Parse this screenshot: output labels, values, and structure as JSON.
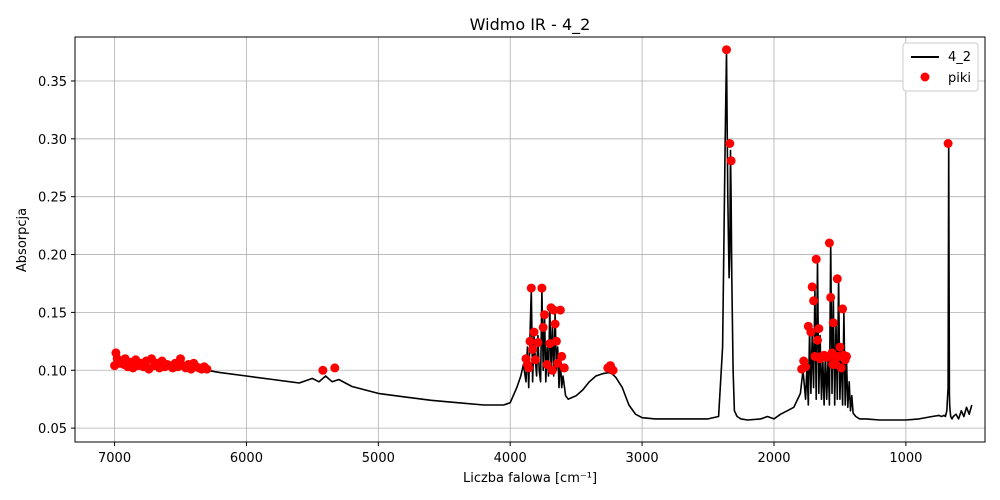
{
  "chart_data": {
    "type": "line",
    "title": "Widmo IR - 4_2",
    "xlabel": "Liczba falowa [cm⁻¹]",
    "ylabel": "Absorpcja",
    "x_reversed": true,
    "xlim": [
      7300,
      400
    ],
    "ylim": [
      0.038,
      0.388
    ],
    "xticks": [
      7000,
      6000,
      5000,
      4000,
      3000,
      2000,
      1000
    ],
    "yticks": [
      0.05,
      0.1,
      0.15,
      0.2,
      0.25,
      0.3,
      0.35
    ],
    "xtick_labels": [
      "7000",
      "6000",
      "5000",
      "4000",
      "3000",
      "2000",
      "1000"
    ],
    "ytick_labels": [
      "0.05",
      "0.10",
      "0.15",
      "0.20",
      "0.25",
      "0.30",
      "0.35"
    ],
    "grid": true,
    "legend_position": "top-right",
    "series": [
      {
        "name": "4_2",
        "kind": "line",
        "color": "#000000",
        "x": [
          7000,
          6800,
          6600,
          6400,
          6300,
          6200,
          6000,
          5800,
          5600,
          5500,
          5450,
          5400,
          5350,
          5300,
          5250,
          5200,
          5000,
          4800,
          4600,
          4400,
          4200,
          4050,
          4000,
          3950,
          3920,
          3900,
          3880,
          3870,
          3860,
          3850,
          3840,
          3830,
          3820,
          3810,
          3800,
          3790,
          3780,
          3770,
          3760,
          3750,
          3740,
          3730,
          3720,
          3710,
          3700,
          3690,
          3680,
          3670,
          3660,
          3650,
          3640,
          3630,
          3620,
          3610,
          3600,
          3580,
          3560,
          3540,
          3500,
          3450,
          3400,
          3350,
          3300,
          3250,
          3230,
          3200,
          3150,
          3100,
          3050,
          3000,
          2900,
          2700,
          2500,
          2420,
          2390,
          2370,
          2360,
          2350,
          2345,
          2340,
          2335,
          2330,
          2325,
          2320,
          2310,
          2300,
          2280,
          2250,
          2200,
          2100,
          2050,
          2000,
          1950,
          1900,
          1850,
          1800,
          1780,
          1760,
          1750,
          1740,
          1730,
          1720,
          1710,
          1700,
          1690,
          1680,
          1670,
          1660,
          1650,
          1640,
          1630,
          1620,
          1610,
          1600,
          1590,
          1580,
          1570,
          1560,
          1550,
          1540,
          1530,
          1520,
          1510,
          1500,
          1490,
          1480,
          1470,
          1460,
          1450,
          1440,
          1430,
          1420,
          1410,
          1400,
          1380,
          1350,
          1300,
          1200,
          1100,
          1000,
          900,
          800,
          750,
          730,
          710,
          700,
          690,
          680,
          675,
          670,
          668,
          665,
          660,
          650,
          640,
          620,
          600,
          580,
          560,
          540,
          520,
          500
        ],
        "y": [
          0.108,
          0.105,
          0.103,
          0.101,
          0.1,
          0.098,
          0.095,
          0.092,
          0.089,
          0.093,
          0.09,
          0.095,
          0.09,
          0.092,
          0.089,
          0.086,
          0.08,
          0.077,
          0.074,
          0.072,
          0.07,
          0.07,
          0.072,
          0.085,
          0.095,
          0.105,
          0.09,
          0.12,
          0.085,
          0.13,
          0.17,
          0.09,
          0.13,
          0.11,
          0.095,
          0.13,
          0.1,
          0.09,
          0.17,
          0.1,
          0.15,
          0.09,
          0.12,
          0.095,
          0.155,
          0.1,
          0.14,
          0.095,
          0.15,
          0.1,
          0.12,
          0.085,
          0.11,
          0.085,
          0.095,
          0.078,
          0.075,
          0.076,
          0.078,
          0.083,
          0.09,
          0.095,
          0.097,
          0.098,
          0.097,
          0.094,
          0.085,
          0.07,
          0.062,
          0.059,
          0.058,
          0.058,
          0.058,
          0.06,
          0.12,
          0.3,
          0.375,
          0.25,
          0.21,
          0.18,
          0.2,
          0.29,
          0.25,
          0.18,
          0.1,
          0.065,
          0.06,
          0.058,
          0.057,
          0.058,
          0.06,
          0.058,
          0.062,
          0.065,
          0.068,
          0.08,
          0.1,
          0.075,
          0.105,
          0.07,
          0.135,
          0.08,
          0.13,
          0.085,
          0.17,
          0.075,
          0.195,
          0.08,
          0.13,
          0.075,
          0.11,
          0.07,
          0.115,
          0.075,
          0.11,
          0.07,
          0.21,
          0.08,
          0.165,
          0.07,
          0.14,
          0.075,
          0.18,
          0.075,
          0.12,
          0.07,
          0.15,
          0.07,
          0.11,
          0.068,
          0.09,
          0.065,
          0.078,
          0.063,
          0.06,
          0.058,
          0.058,
          0.057,
          0.057,
          0.057,
          0.058,
          0.06,
          0.061,
          0.06,
          0.061,
          0.06,
          0.065,
          0.085,
          0.296,
          0.08,
          0.07,
          0.065,
          0.06,
          0.058,
          0.06,
          0.062,
          0.058,
          0.065,
          0.06,
          0.068,
          0.062,
          0.07
        ]
      },
      {
        "name": "piki",
        "kind": "markers",
        "color": "#ff0000",
        "x": [
          7000,
          6990,
          6980,
          6960,
          6950,
          6930,
          6920,
          6900,
          6880,
          6860,
          6840,
          6820,
          6800,
          6780,
          6760,
          6740,
          6720,
          6700,
          6680,
          6660,
          6640,
          6620,
          6600,
          6580,
          6560,
          6540,
          6520,
          6500,
          6480,
          6460,
          6440,
          6420,
          6400,
          6380,
          6360,
          6340,
          6320,
          6300,
          5420,
          5330,
          3880,
          3870,
          3860,
          3850,
          3840,
          3830,
          3820,
          3810,
          3790,
          3760,
          3750,
          3740,
          3720,
          3700,
          3690,
          3680,
          3670,
          3660,
          3650,
          3640,
          3620,
          3610,
          3590,
          3260,
          3240,
          3230,
          3220,
          2360,
          2335,
          2325,
          1790,
          1775,
          1760,
          1740,
          1720,
          1710,
          1700,
          1690,
          1680,
          1670,
          1660,
          1650,
          1640,
          1620,
          1600,
          1580,
          1570,
          1560,
          1555,
          1550,
          1540,
          1530,
          1520,
          1510,
          1500,
          1490,
          1480,
          1470,
          1460,
          1450,
          680
        ],
        "y": [
          0.104,
          0.115,
          0.11,
          0.106,
          0.108,
          0.105,
          0.11,
          0.103,
          0.107,
          0.102,
          0.109,
          0.104,
          0.106,
          0.103,
          0.108,
          0.101,
          0.11,
          0.104,
          0.106,
          0.102,
          0.108,
          0.103,
          0.105,
          0.104,
          0.102,
          0.106,
          0.103,
          0.11,
          0.104,
          0.102,
          0.105,
          0.101,
          0.106,
          0.103,
          0.102,
          0.101,
          0.103,
          0.101,
          0.1,
          0.102,
          0.11,
          0.105,
          0.102,
          0.125,
          0.171,
          0.118,
          0.133,
          0.109,
          0.124,
          0.171,
          0.137,
          0.148,
          0.105,
          0.123,
          0.154,
          0.1,
          0.152,
          0.14,
          0.125,
          0.106,
          0.152,
          0.112,
          0.102,
          0.102,
          0.104,
          0.101,
          0.1,
          0.377,
          0.296,
          0.281,
          0.101,
          0.108,
          0.103,
          0.138,
          0.133,
          0.172,
          0.16,
          0.112,
          0.196,
          0.126,
          0.136,
          0.11,
          0.112,
          0.113,
          0.111,
          0.21,
          0.163,
          0.115,
          0.105,
          0.141,
          0.11,
          0.105,
          0.179,
          0.112,
          0.12,
          0.102,
          0.153,
          0.113,
          0.109,
          0.112,
          0.296
        ]
      }
    ]
  }
}
